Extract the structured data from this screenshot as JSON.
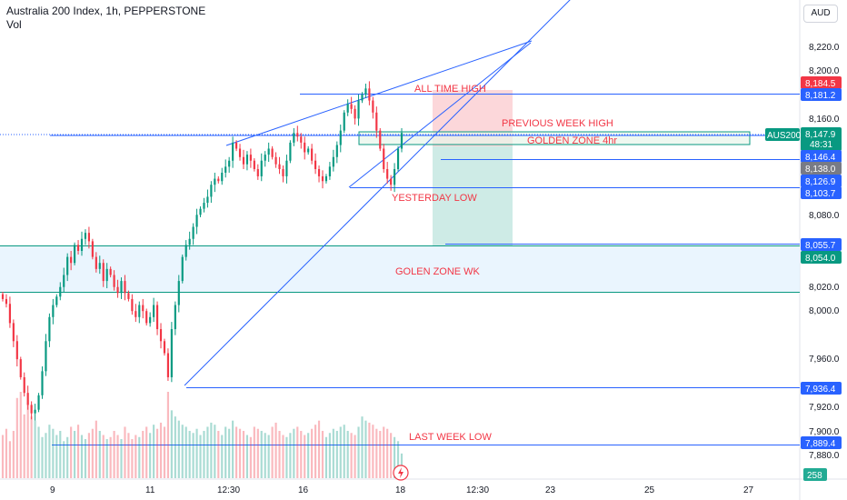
{
  "header": {
    "title": "Australia 200 Index, 1h, PEPPERSTONE",
    "volume_label": "Vol"
  },
  "currency_button": "AUD",
  "chart_data": {
    "type": "candlestick",
    "symbol": "AUS200",
    "timeframe": "1h",
    "ylim": [
      7870,
      8250
    ],
    "y_ticks": [
      "8,220.0",
      "8,200.0",
      "8,160.0",
      "8,080.0",
      "8,020.0",
      "8,000.0",
      "7,960.0",
      "7,920.0",
      "7,900.0",
      "7,880.0"
    ],
    "x_ticks": [
      "9",
      "11",
      "12:30",
      "16",
      "18",
      "12:30",
      "23",
      "25",
      "27"
    ],
    "last_price": "8,147.9",
    "countdown": "48:31",
    "volume_value": "258",
    "price_badges": [
      {
        "value": "8,184.5",
        "color": "#f23645"
      },
      {
        "value": "8,181.2",
        "color": "#2962ff"
      },
      {
        "value": "8,146.4",
        "color": "#2962ff"
      },
      {
        "value": "8,138.0",
        "color": "#787b86"
      },
      {
        "value": "8,126.9",
        "color": "#2962ff"
      },
      {
        "value": "8,103.7",
        "color": "#2962ff"
      },
      {
        "value": "8,055.7",
        "color": "#2962ff"
      },
      {
        "value": "8,054.0",
        "color": "#089981"
      },
      {
        "value": "7,936.4",
        "color": "#2962ff"
      },
      {
        "value": "7,889.4",
        "color": "#2962ff"
      }
    ],
    "annotations": {
      "all_time_high": "ALL TIME HIGH",
      "previous_week_high": "PREVIOUS WEEK HIGH",
      "golden_zone_4hr": "GOLDEN ZONE 4hr",
      "yesterday_low": "YESTERDAY LOW",
      "golden_zone_wk": "GOLEN ZONE WK",
      "last_week_low": "LAST WEEK LOW"
    },
    "levels": {
      "all_time_high": 8181.2,
      "golden_zone_4hr_top": 8150.5,
      "golden_zone_4hr_bottom": 8140.5,
      "previous_week_high": 8146.4,
      "yesterday_low": 8103.7,
      "golden_zone_wk_top": 8055.7,
      "golden_zone_wk_bottom": 8016.5,
      "target_level": 8058,
      "swing_low": 7936.4,
      "last_week_low": 7889.4
    },
    "closes": [
      8010,
      8006,
      7990,
      7975,
      7960,
      7945,
      7932,
      7922,
      7915,
      7918,
      7930,
      7950,
      7975,
      7995,
      8005,
      8012,
      8020,
      8030,
      8045,
      8040,
      8055,
      8050,
      8060,
      8065,
      8058,
      8045,
      8035,
      8040,
      8025,
      8035,
      8030,
      8020,
      8015,
      8025,
      8015,
      8010,
      8000,
      7995,
      8005,
      8000,
      7990,
      7995,
      8005,
      7985,
      7975,
      7965,
      7945,
      7985,
      8005,
      8025,
      8045,
      8055,
      8060,
      8070,
      8080,
      8085,
      8090,
      8095,
      8105,
      8110,
      8108,
      8115,
      8120,
      8125,
      8140,
      8135,
      8128,
      8122,
      8130,
      8125,
      8118,
      8112,
      8125,
      8130,
      8135,
      8128,
      8122,
      8118,
      8112,
      8125,
      8140,
      8148,
      8145,
      8140,
      8132,
      8135,
      8125,
      8118,
      8112,
      8108,
      8112,
      8120,
      8128,
      8138,
      8150,
      8165,
      8172,
      8168,
      8160,
      8175,
      8180,
      8185,
      8175,
      8165,
      8150,
      8135,
      8118,
      8110,
      8105,
      8118,
      8135,
      8148
    ],
    "volumes": [
      210,
      240,
      180,
      230,
      390,
      420,
      310,
      380,
      300,
      280,
      250,
      200,
      220,
      260,
      240,
      210,
      230,
      180,
      200,
      250,
      230,
      260,
      210,
      190,
      220,
      240,
      280,
      230,
      210,
      190,
      200,
      230,
      210,
      190,
      250,
      220,
      190,
      210,
      200,
      230,
      250,
      220,
      260,
      240,
      270,
      250,
      420,
      330,
      300,
      280,
      260,
      250,
      230,
      220,
      240,
      210,
      230,
      250,
      270,
      260,
      230,
      210,
      250,
      240,
      280,
      250,
      240,
      230,
      210,
      200,
      250,
      240,
      230,
      220,
      210,
      250,
      270,
      230,
      210,
      200,
      220,
      240,
      250,
      230,
      210,
      220,
      240,
      260,
      280,
      230,
      200,
      220,
      240,
      230,
      250,
      260,
      230,
      220,
      210,
      250,
      300,
      280,
      270,
      260,
      240,
      230,
      250,
      240,
      220,
      200,
      180,
      120
    ]
  }
}
